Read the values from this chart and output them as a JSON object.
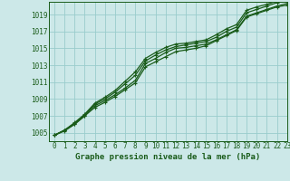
{
  "title": "Graphe pression niveau de la mer (hPa)",
  "bg_color": "#cce8e8",
  "grid_color": "#99cccc",
  "line_color": "#1a5c1a",
  "xlim": [
    -0.5,
    23
  ],
  "ylim": [
    1004.0,
    1020.5
  ],
  "yticks": [
    1005,
    1007,
    1009,
    1011,
    1013,
    1015,
    1017,
    1019
  ],
  "xticks": [
    0,
    1,
    2,
    3,
    4,
    5,
    6,
    7,
    8,
    9,
    10,
    11,
    12,
    13,
    14,
    15,
    16,
    17,
    18,
    19,
    20,
    21,
    22,
    23
  ],
  "series": [
    [
      1004.7,
      1005.3,
      1006.0,
      1007.0,
      1008.2,
      1008.8,
      1009.5,
      1010.3,
      1011.2,
      1013.2,
      1013.8,
      1014.5,
      1015.0,
      1015.1,
      1015.3,
      1015.5,
      1016.0,
      1016.6,
      1017.2,
      1018.8,
      1019.2,
      1019.6,
      1020.0,
      1020.3
    ],
    [
      1004.7,
      1005.3,
      1006.1,
      1007.1,
      1008.4,
      1009.0,
      1009.8,
      1010.8,
      1011.8,
      1013.5,
      1014.2,
      1014.8,
      1015.2,
      1015.4,
      1015.6,
      1015.8,
      1016.3,
      1017.0,
      1017.5,
      1019.2,
      1019.6,
      1020.0,
      1020.4,
      1020.6
    ],
    [
      1004.7,
      1005.3,
      1006.2,
      1007.2,
      1008.5,
      1009.2,
      1010.0,
      1011.1,
      1012.2,
      1013.8,
      1014.5,
      1015.1,
      1015.5,
      1015.6,
      1015.8,
      1016.0,
      1016.6,
      1017.3,
      1017.8,
      1019.5,
      1019.9,
      1020.2,
      1020.6,
      1020.8
    ],
    [
      1004.7,
      1005.2,
      1006.0,
      1007.0,
      1008.0,
      1008.6,
      1009.3,
      1010.1,
      1010.9,
      1012.8,
      1013.4,
      1014.0,
      1014.6,
      1014.8,
      1015.0,
      1015.3,
      1015.9,
      1016.5,
      1017.1,
      1018.7,
      1019.1,
      1019.5,
      1019.9,
      1020.1
    ]
  ],
  "xlabel_fontsize": 6.5,
  "ylabel_fontsize": 5.5,
  "xlabel_tick_fontsize": 5.5,
  "ylabel_tick_fontsize": 5.5
}
